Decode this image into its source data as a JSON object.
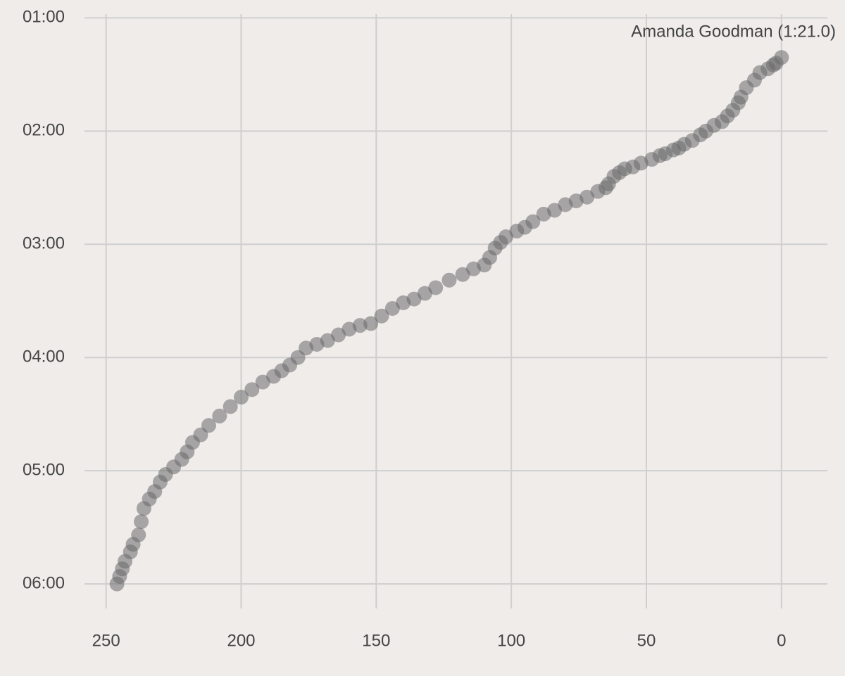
{
  "chart_data": {
    "type": "scatter",
    "annotation": "Amanda Goodman (1:21.0)",
    "x": [
      0,
      2,
      3,
      5,
      8,
      10,
      13,
      15,
      16,
      18,
      20,
      22,
      25,
      28,
      30,
      33,
      36,
      38,
      40,
      43,
      45,
      48,
      52,
      55,
      58,
      60,
      62,
      64,
      65,
      68,
      72,
      76,
      80,
      84,
      88,
      92,
      95,
      98,
      102,
      104,
      106,
      108,
      110,
      114,
      118,
      123,
      128,
      132,
      136,
      140,
      144,
      148,
      152,
      156,
      160,
      164,
      168,
      172,
      176,
      179,
      182,
      185,
      188,
      192,
      196,
      200,
      204,
      208,
      212,
      215,
      218,
      220,
      222,
      225,
      228,
      230,
      232,
      234,
      236,
      237,
      238,
      240,
      241,
      243,
      244,
      245,
      246
    ],
    "values": [
      81,
      84,
      85,
      87,
      89,
      93,
      97,
      102,
      105,
      109,
      112,
      115,
      117,
      120,
      122,
      125,
      127,
      129,
      130,
      132,
      133,
      135,
      137,
      139,
      140,
      142,
      144,
      148,
      150,
      152,
      155,
      157,
      159,
      162,
      164,
      168,
      171,
      173,
      176,
      179,
      182,
      187,
      191,
      193,
      196,
      199,
      203,
      206,
      209,
      211,
      214,
      218,
      222,
      223,
      225,
      228,
      231,
      233,
      235,
      240,
      244,
      247,
      250,
      253,
      257,
      261,
      266,
      271,
      276,
      281,
      285,
      290,
      294,
      298,
      302,
      306,
      311,
      315,
      320,
      327,
      334,
      339,
      343,
      348,
      352,
      356,
      360
    ],
    "color": "#6a6a6a",
    "xlim": [
      258,
      -17
    ],
    "xticks": [
      250,
      200,
      150,
      100,
      50,
      0
    ],
    "ylim": [
      373,
      58
    ],
    "yticks": [
      {
        "value": 60,
        "label": "01:00"
      },
      {
        "value": 120,
        "label": "02:00"
      },
      {
        "value": 180,
        "label": "03:00"
      },
      {
        "value": 240,
        "label": "04:00"
      },
      {
        "value": 300,
        "label": "05:00"
      },
      {
        "value": 360,
        "label": "06:00"
      }
    ],
    "grid": true
  }
}
